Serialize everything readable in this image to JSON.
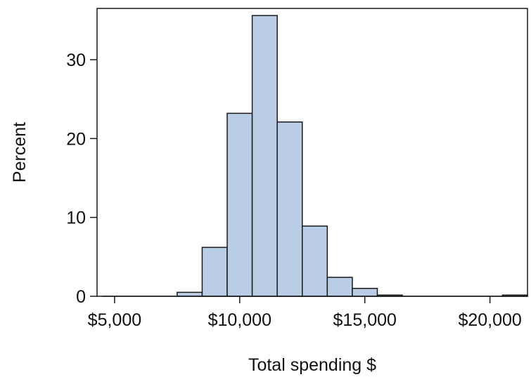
{
  "chart_data": {
    "type": "bar",
    "title": "",
    "xlabel": "Total spending $",
    "ylabel": "Percent",
    "bin_edges": [
      4500,
      5500,
      6500,
      7500,
      8500,
      9500,
      10500,
      11500,
      12500,
      13500,
      14500,
      15500,
      16500,
      17500,
      18500,
      19500,
      20500,
      21500
    ],
    "values": [
      0,
      0,
      0,
      0.5,
      6.2,
      23.2,
      35.6,
      22.1,
      8.9,
      2.4,
      1.0,
      0.15,
      0,
      0,
      0,
      0,
      0.15
    ],
    "xlim": [
      4300,
      21500
    ],
    "ylim": [
      0,
      36.5
    ],
    "xticks": [
      5000,
      10000,
      15000,
      20000
    ],
    "xtick_labels": [
      "$5,000",
      "$10,000",
      "$15,000",
      "$20,000"
    ],
    "yticks": [
      0,
      10,
      20,
      30
    ],
    "ytick_labels": [
      "0",
      "10",
      "20",
      "30"
    ],
    "grid": false,
    "legend": "none",
    "bar_color": "#b9cde6",
    "bar_edge_color": "#1a1a1a"
  }
}
